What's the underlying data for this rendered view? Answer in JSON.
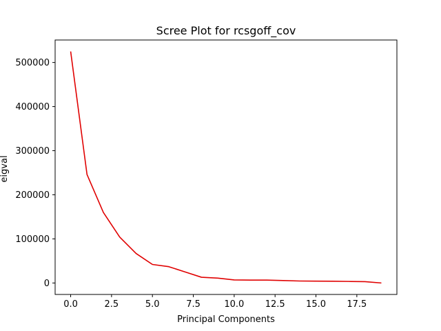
{
  "chart_data": {
    "type": "line",
    "title": "Scree Plot for rcsgoff_cov",
    "xlabel": "Principal Components",
    "ylabel": "eigval",
    "xlim": [
      -0.95,
      19.95
    ],
    "ylim": [
      -26000,
      551000
    ],
    "xticks": [
      0,
      2.5,
      5,
      7.5,
      10,
      12.5,
      15,
      17.5
    ],
    "xtick_labels": [
      "0.0",
      "2.5",
      "5.0",
      "7.5",
      "10.0",
      "12.5",
      "15.0",
      "17.5"
    ],
    "yticks": [
      0,
      100000,
      200000,
      300000,
      400000,
      500000
    ],
    "ytick_labels": [
      "0",
      "100000",
      "200000",
      "300000",
      "400000",
      "500000"
    ],
    "grid": false,
    "series": [
      {
        "color": "#e00000",
        "x": [
          0,
          1,
          2,
          3,
          4,
          5,
          6,
          7,
          8,
          9,
          10,
          11,
          12,
          13,
          14,
          15,
          16,
          17,
          18,
          19
        ],
        "values": [
          525000,
          246000,
          160000,
          104000,
          67000,
          42000,
          37000,
          25000,
          13000,
          11000,
          7000,
          6500,
          6500,
          5500,
          4500,
          4200,
          4000,
          3500,
          3000,
          0
        ]
      }
    ]
  }
}
